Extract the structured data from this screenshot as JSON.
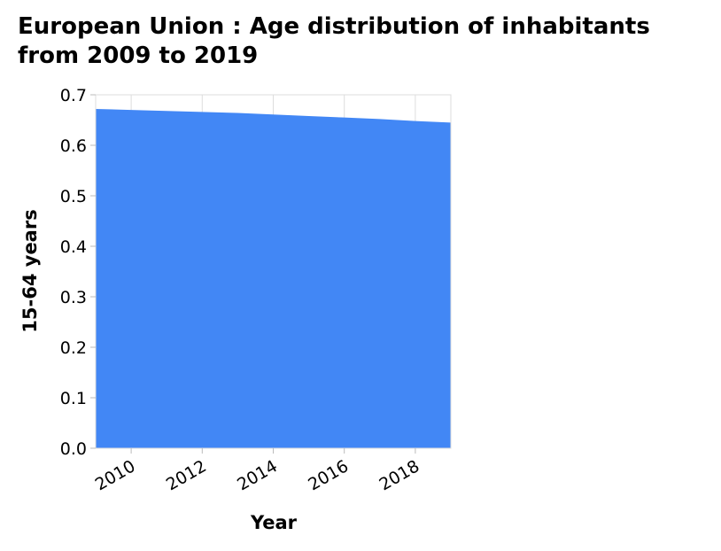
{
  "chart_data": {
    "type": "area",
    "title": "European Union : Age distribution of inhabitants from 2009 to 2019",
    "xlabel": "Year",
    "ylabel": "15-64 years",
    "x": [
      2009,
      2010,
      2011,
      2012,
      2013,
      2014,
      2015,
      2016,
      2017,
      2018,
      2019
    ],
    "series": [
      {
        "values": [
          0.672,
          0.67,
          0.668,
          0.666,
          0.664,
          0.661,
          0.658,
          0.655,
          0.652,
          0.648,
          0.645
        ],
        "color": "#4287f5"
      }
    ],
    "xlim": [
      2009,
      2019
    ],
    "ylim": [
      0,
      0.7
    ],
    "xticks": [
      2010,
      2012,
      2014,
      2016,
      2018
    ],
    "yticks": [
      "0.0",
      "0.1",
      "0.2",
      "0.3",
      "0.4",
      "0.5",
      "0.6",
      "0.7"
    ],
    "grid": true,
    "legend": "none"
  }
}
